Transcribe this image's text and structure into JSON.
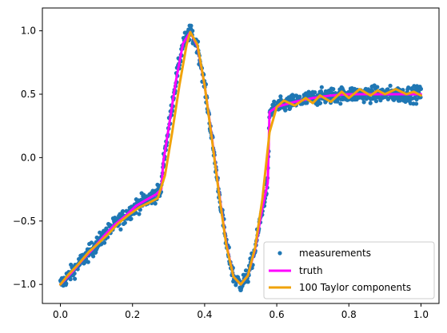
{
  "chart_data": {
    "type": "line",
    "title": "",
    "xlabel": "",
    "ylabel": "",
    "xlim": [
      -0.05,
      1.05
    ],
    "ylim": [
      -1.15,
      1.18
    ],
    "x_ticks": [
      0.0,
      0.2,
      0.4,
      0.6,
      0.8,
      1.0
    ],
    "x_tick_labels": [
      "0.0",
      "0.2",
      "0.4",
      "0.6",
      "0.8",
      "1.0"
    ],
    "y_ticks": [
      -1.0,
      -0.5,
      0.0,
      0.5,
      1.0
    ],
    "y_tick_labels": [
      "−1.0",
      "−0.5",
      "0.0",
      "0.5",
      "1.0"
    ],
    "grid": false,
    "legend_position": "bottom-right",
    "series": [
      {
        "name": "measurements",
        "kind": "scatter",
        "color": "#1f77b4",
        "count": 1000,
        "noise": 0.03
      },
      {
        "name": "truth",
        "kind": "line",
        "color": "#ff00ff",
        "x": [
          0.0,
          0.03,
          0.06,
          0.09,
          0.12,
          0.15,
          0.18,
          0.21,
          0.24,
          0.265,
          0.28,
          0.285,
          0.3,
          0.32,
          0.34,
          0.36,
          0.38,
          0.4,
          0.42,
          0.44,
          0.46,
          0.48,
          0.5,
          0.52,
          0.54,
          0.56,
          0.575,
          0.58,
          0.6,
          0.65,
          0.7,
          0.75,
          0.8,
          0.85,
          0.9,
          0.95,
          1.0
        ],
        "y": [
          -1.0,
          -0.91,
          -0.81,
          -0.72,
          -0.62,
          -0.53,
          -0.46,
          -0.38,
          -0.33,
          -0.29,
          -0.25,
          -0.04,
          0.23,
          0.6,
          0.9,
          0.99,
          0.88,
          0.57,
          0.16,
          -0.28,
          -0.68,
          -0.94,
          -1.0,
          -0.93,
          -0.72,
          -0.4,
          -0.2,
          0.36,
          0.4,
          0.44,
          0.47,
          0.49,
          0.5,
          0.5,
          0.5,
          0.5,
          0.5
        ]
      },
      {
        "name": "100 Taylor components",
        "kind": "line",
        "color": "#f0a30a",
        "x": [
          0.0,
          0.02,
          0.05,
          0.08,
          0.1,
          0.13,
          0.16,
          0.19,
          0.22,
          0.25,
          0.27,
          0.29,
          0.31,
          0.33,
          0.35,
          0.36,
          0.38,
          0.4,
          0.42,
          0.44,
          0.46,
          0.48,
          0.5,
          0.52,
          0.54,
          0.56,
          0.58,
          0.6,
          0.62,
          0.65,
          0.68,
          0.7,
          0.72,
          0.75,
          0.78,
          0.8,
          0.83,
          0.86,
          0.88,
          0.9,
          0.93,
          0.96,
          0.98,
          1.0
        ],
        "y": [
          -1.0,
          -0.93,
          -0.84,
          -0.74,
          -0.69,
          -0.61,
          -0.52,
          -0.45,
          -0.39,
          -0.35,
          -0.32,
          -0.14,
          0.2,
          0.57,
          0.89,
          0.99,
          0.89,
          0.57,
          0.15,
          -0.29,
          -0.69,
          -0.94,
          -1.0,
          -0.93,
          -0.71,
          -0.33,
          0.2,
          0.4,
          0.45,
          0.41,
          0.47,
          0.43,
          0.49,
          0.44,
          0.52,
          0.47,
          0.54,
          0.49,
          0.53,
          0.5,
          0.54,
          0.5,
          0.52,
          0.49
        ]
      }
    ]
  }
}
